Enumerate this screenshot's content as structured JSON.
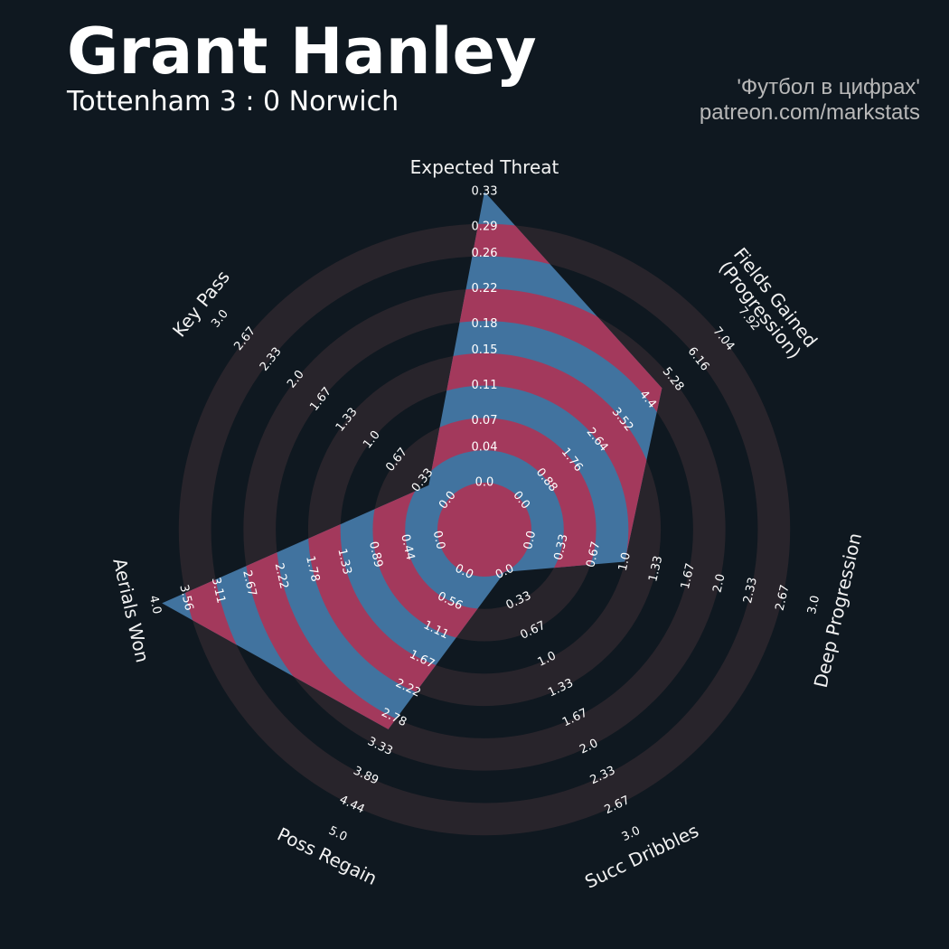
{
  "chart_data": {
    "type": "radar",
    "title": "Grant Hanley",
    "subtitle": "Tottenham 3 : 0 Norwich",
    "credits": [
      "'Футбол в цифрах'",
      "patreon.com/markstats"
    ],
    "categories": [
      "Expected Threat",
      "Fields Gained\n(Progression)",
      "Deep Progression",
      "Succ Dribbles",
      "Poss Regain",
      "Aerials Won",
      "Key Pass"
    ],
    "values": [
      0.33,
      4.9,
      1.0,
      0.0,
      3.0,
      3.9,
      0.25
    ],
    "rlims": [
      [
        0,
        0.33
      ],
      [
        0,
        7.92
      ],
      [
        0,
        3
      ],
      [
        0,
        3
      ],
      [
        0,
        5
      ],
      [
        0,
        4
      ],
      [
        0,
        3
      ]
    ],
    "ticks": [
      [
        {
          "value": 0,
          "label": "0.0"
        },
        0.04,
        0.07,
        0.11,
        0.15,
        0.18,
        0.22,
        0.26,
        0.29,
        0.33
      ],
      [
        {
          "value": 0,
          "label": "0.0"
        },
        0.88,
        1.76,
        2.64,
        3.52,
        4.4,
        5.28,
        6.16,
        7.04,
        7.92
      ],
      [
        {
          "value": 0,
          "label": "0.0"
        },
        0.33,
        0.67,
        {
          "value": 1,
          "label": "1.0"
        },
        1.33,
        1.67,
        {
          "value": 2,
          "label": "2.0"
        },
        2.33,
        2.67,
        {
          "value": 3,
          "label": "3.0"
        }
      ],
      [
        {
          "value": 0,
          "label": "0.0"
        },
        0.33,
        0.67,
        {
          "value": 1,
          "label": "1.0"
        },
        1.33,
        1.67,
        {
          "value": 2,
          "label": "2.0"
        },
        2.33,
        2.67,
        {
          "value": 3,
          "label": "3.0"
        }
      ],
      [
        {
          "value": 0,
          "label": "0.0"
        },
        0.56,
        1.11,
        1.67,
        2.22,
        2.78,
        3.33,
        3.89,
        4.44,
        {
          "value": 5,
          "label": "5.0"
        }
      ],
      [
        {
          "value": 0,
          "label": "0.0"
        },
        0.44,
        0.89,
        1.33,
        1.78,
        2.22,
        2.67,
        3.11,
        3.56,
        {
          "value": 4,
          "label": "4.0"
        }
      ],
      [
        {
          "value": 0,
          "label": "0.0"
        },
        0.33,
        0.67,
        {
          "value": 1,
          "label": "1.0"
        },
        1.33,
        1.67,
        {
          "value": 2,
          "label": "2.0"
        },
        2.33,
        2.67,
        {
          "value": 3,
          "label": "3.0"
        }
      ]
    ],
    "color": "#41739f",
    "ring_fill_color": "#a3395c",
    "ring_color": "#28242b"
  }
}
